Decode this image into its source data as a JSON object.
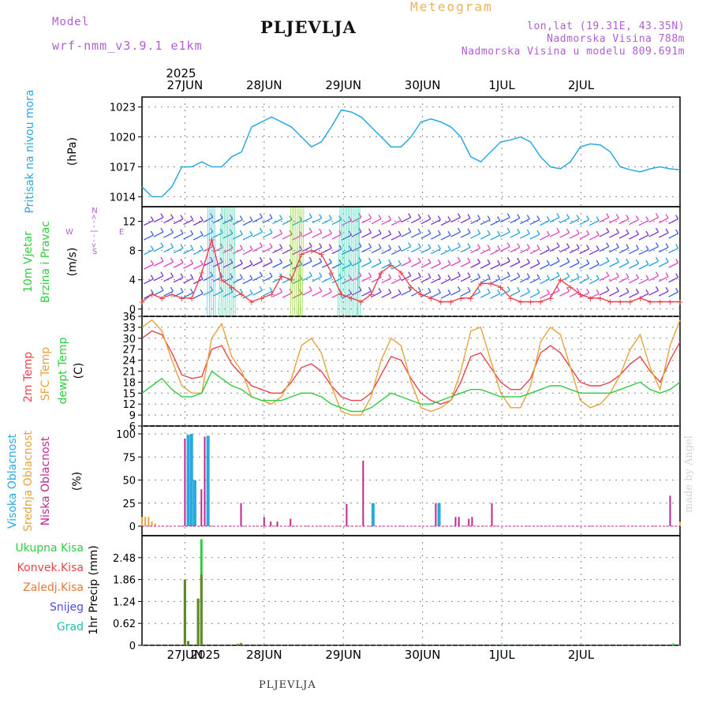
{
  "header": {
    "model_label": "Model",
    "model_name": "wrf-nmm_v3.9.1 e1km",
    "station": "PLJEVLJA",
    "title": "Meteogram",
    "coords": "lon,lat (19.31E, 43.35N)",
    "elevation": "Nadmorska Visina 788m",
    "model_elevation": "Nadmorska Visina u modelu 809.691m"
  },
  "footer": {
    "station": "PLJEVLJA",
    "watermark": "made by Angel"
  },
  "time_axis": {
    "year": "2025",
    "days": [
      "27JUN",
      "28JUN",
      "29JUN",
      "30JUN",
      "1JUL",
      "2JUL"
    ]
  },
  "colors": {
    "pressure": "#29a9e0",
    "temp2m": "#e8434a",
    "sfc": "#e8a23a",
    "dew": "#2ecc40",
    "high_cloud": "#29a9e0",
    "mid_cloud": "#e8a23a",
    "low_cloud": "#c0288f",
    "total_precip": "#2ecc40",
    "conv_precip": "#e8434a",
    "frz_precip": "#e8793a",
    "snow": "#4a4ae0",
    "grad": "#20c0b0",
    "wind_label": "#2ecc40",
    "wind_dir": "#b05fd0",
    "wind_speed": "#e8434a"
  },
  "panels": {
    "pressure": {
      "label": "Pritisak na nivou mora",
      "unit": "(hPa)",
      "yticks": [
        "1014",
        "1017",
        "1020",
        "1023"
      ]
    },
    "wind": {
      "label1": "10m Vjetar",
      "label2": "Brzina i Pravac",
      "unit": "(m/s)",
      "yticks": [
        "0",
        "4",
        "8",
        "12"
      ],
      "dir_n": "N",
      "dir_s": "S",
      "dir_w": "W",
      "dir_e": "E",
      "dir_glyph": "<--|-->"
    },
    "temp": {
      "label1": "2m Temp",
      "label2": "SFC Temp",
      "label3": "dewpt Temp",
      "unit": "(C)",
      "yticks": [
        "6",
        "9",
        "12",
        "15",
        "18",
        "21",
        "24",
        "27",
        "30",
        "33",
        "36"
      ]
    },
    "cloud": {
      "label1": "Visoka Oblacnost",
      "label2": "Srednja Oblacnost",
      "label3": "Niska Oblacnost",
      "unit": "(%)",
      "yticks": [
        "0",
        "25",
        "50",
        "75",
        "100"
      ]
    },
    "precip": {
      "labels": [
        "Ukupna Kisa",
        "Konvek.Kisa",
        "Zaledj.Kisa",
        "Snijeg",
        "Grad"
      ],
      "unit": "1hr Precip (mm)",
      "yticks": [
        "0",
        "0.62",
        "1.24",
        "1.86",
        "2.48"
      ]
    }
  },
  "chart_data": [
    {
      "type": "line",
      "title": "",
      "ylabel": "Pritisak na nivou mora (hPa)",
      "ylim": [
        1013,
        1024
      ],
      "x_hours": [
        0,
        3,
        6,
        9,
        12,
        15,
        18,
        21,
        24,
        27,
        30,
        33,
        36,
        39,
        42,
        45,
        48,
        51,
        54,
        57,
        60,
        63,
        66,
        69,
        72,
        75,
        78,
        81,
        84,
        87,
        90,
        93,
        96,
        99,
        102,
        105,
        108,
        111,
        114,
        117,
        120,
        123,
        126,
        129,
        132,
        135,
        138,
        141,
        144,
        147,
        150,
        153,
        156,
        159,
        162
      ],
      "series": [
        {
          "values": [
            1015,
            1014,
            1014,
            1015,
            1017,
            1017,
            1017.5,
            1017,
            1017,
            1018,
            1018.5,
            1021,
            1021.5,
            1022,
            1021.5,
            1021,
            1020,
            1019,
            1019.5,
            1021,
            1022.7,
            1022.5,
            1022,
            1021,
            1020,
            1019,
            1019,
            1020,
            1021.5,
            1021.8,
            1021.5,
            1021,
            1020,
            1018,
            1017.5,
            1018.5,
            1019.5,
            1019.7,
            1020,
            1019.5,
            1018,
            1017,
            1016.8,
            1017.5,
            1019,
            1019.3,
            1019.2,
            1018.5,
            1017,
            1016.7,
            1016.5,
            1016.8,
            1017,
            1016.8,
            1016.7
          ]
        }
      ]
    },
    {
      "type": "line",
      "title": "",
      "ylabel": "10m Vjetar (m/s)",
      "ylim": [
        -1,
        14
      ],
      "x_hours": [
        0,
        3,
        6,
        9,
        12,
        15,
        18,
        21,
        24,
        27,
        30,
        33,
        36,
        39,
        42,
        45,
        48,
        51,
        54,
        57,
        60,
        63,
        66,
        69,
        72,
        75,
        78,
        81,
        84,
        87,
        90,
        93,
        96,
        99,
        102,
        105,
        108,
        111,
        114,
        117,
        120,
        123,
        126,
        129,
        132,
        135,
        138,
        141,
        144,
        147,
        150,
        153,
        156,
        159,
        162
      ],
      "series": [
        {
          "values": [
            1,
            2,
            1.5,
            2,
            1.5,
            1.5,
            5,
            9.5,
            4,
            3,
            2,
            1,
            1.5,
            2,
            4.5,
            4,
            7.5,
            8,
            7.5,
            5,
            2,
            1.5,
            1,
            2,
            5,
            6,
            5,
            3,
            2,
            1.5,
            1,
            1,
            1.5,
            1.5,
            3.5,
            3.5,
            3,
            1.5,
            1,
            1,
            1,
            1.5,
            4,
            3,
            2,
            1.5,
            1.5,
            1,
            1,
            1,
            1.5,
            1,
            1,
            1,
            1
          ]
        }
      ]
    },
    {
      "type": "line",
      "title": "",
      "ylabel": "(C)",
      "ylim": [
        6,
        36
      ],
      "x_hours": [
        0,
        3,
        6,
        9,
        12,
        15,
        18,
        21,
        24,
        27,
        30,
        33,
        36,
        39,
        42,
        45,
        48,
        51,
        54,
        57,
        60,
        63,
        66,
        69,
        72,
        75,
        78,
        81,
        84,
        87,
        90,
        93,
        96,
        99,
        102,
        105,
        108,
        111,
        114,
        117,
        120,
        123,
        126,
        129,
        132,
        135,
        138,
        141,
        144,
        147,
        150,
        153,
        156,
        159,
        162
      ],
      "series": [
        {
          "name": "2m Temp",
          "values": [
            30,
            32,
            31,
            26,
            20,
            19,
            19.5,
            27,
            28,
            23,
            20,
            17,
            16,
            15,
            15,
            18,
            22,
            23,
            21,
            17,
            14,
            13,
            13,
            15,
            20,
            25,
            24,
            19,
            15,
            13,
            12,
            13,
            18,
            25,
            26,
            22,
            18,
            16,
            16,
            19,
            26,
            28,
            26,
            22,
            18,
            17,
            17,
            18,
            20,
            23,
            25,
            21,
            18,
            24,
            29
          ]
        },
        {
          "name": "SFC Temp",
          "values": [
            33,
            35,
            32,
            24,
            17,
            15,
            15,
            30,
            34,
            25,
            21,
            14,
            13,
            12,
            14,
            19,
            28,
            30,
            26,
            17,
            10,
            9,
            9,
            14,
            24,
            30,
            28,
            18,
            11,
            10,
            11,
            13,
            21,
            32,
            33,
            24,
            15,
            11,
            11,
            17,
            29,
            33,
            31,
            22,
            13,
            11,
            12,
            15,
            20,
            27,
            31,
            22,
            16,
            28,
            35
          ]
        },
        {
          "name": "dewpt Temp",
          "values": [
            15,
            17,
            19,
            16,
            14,
            14,
            15,
            21,
            19,
            17,
            16,
            14,
            13,
            13,
            13,
            14,
            15,
            15,
            14,
            12,
            11,
            10,
            10,
            11,
            13,
            15,
            14,
            13,
            12,
            12,
            13,
            14,
            15,
            16,
            16,
            15,
            14,
            14,
            14,
            15,
            16,
            17,
            17,
            16,
            15,
            15,
            15,
            15,
            16,
            17,
            18,
            16,
            15,
            16,
            18
          ]
        }
      ]
    },
    {
      "type": "bar",
      "title": "",
      "ylabel": "(%)",
      "ylim": [
        0,
        100
      ],
      "series": [
        {
          "name": "Visoka Oblacnost",
          "x_hours": [
            14,
            15,
            16,
            20,
            70,
            90
          ],
          "values": [
            99,
            100,
            50,
            98,
            25,
            25
          ]
        },
        {
          "name": "Srednja Oblacnost",
          "x_hours": [
            0,
            1,
            2,
            3,
            4,
            163
          ],
          "values": [
            10,
            10,
            10,
            5,
            3,
            5
          ]
        },
        {
          "name": "Niska Oblacnost",
          "x_hours": [
            13,
            18,
            19,
            30,
            37,
            39,
            41,
            45,
            62,
            67,
            89,
            95,
            96,
            99,
            100,
            106,
            160
          ],
          "values": [
            95,
            40,
            97,
            25,
            10,
            5,
            5,
            8,
            24,
            71,
            25,
            10,
            10,
            8,
            10,
            25,
            33
          ]
        }
      ]
    },
    {
      "type": "bar",
      "title": "",
      "ylabel": "1hr Precip (mm)",
      "ylim": [
        0,
        3.1
      ],
      "series": [
        {
          "name": "Ukupna Kisa",
          "x_hours": [
            13,
            14,
            17,
            18,
            29,
            30,
            109,
            161
          ],
          "values": [
            1.86,
            0.12,
            1.32,
            3.0,
            0.04,
            0.06,
            0.02,
            0.05
          ]
        },
        {
          "name": "Konvek.Kisa",
          "x_hours": [
            13,
            14,
            17,
            18,
            29,
            30
          ],
          "values": [
            1.86,
            0.12,
            1.32,
            2.0,
            0.04,
            0.06
          ]
        }
      ]
    }
  ]
}
